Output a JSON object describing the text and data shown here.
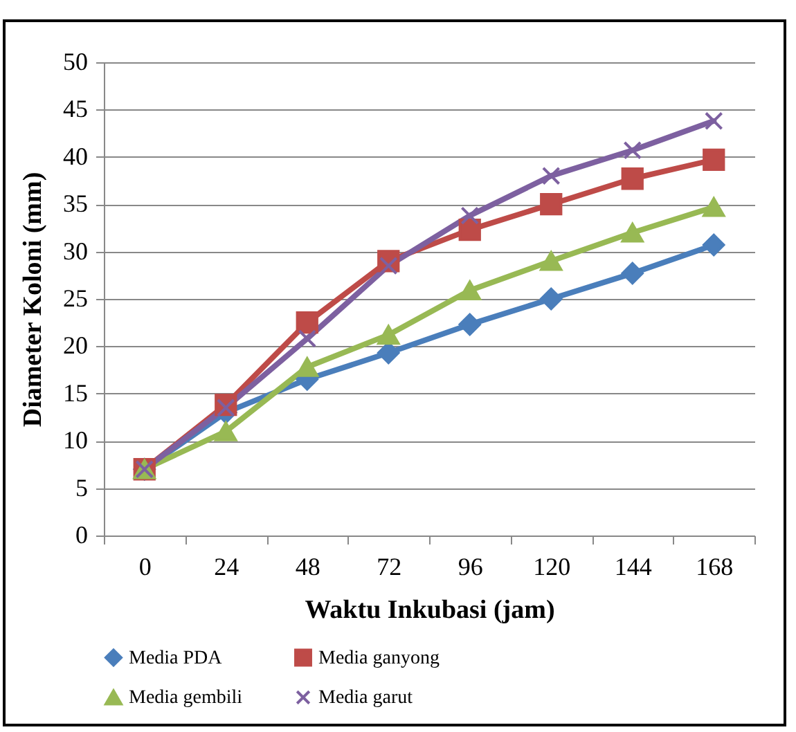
{
  "chart_data": {
    "type": "line",
    "xlabel": "Waktu Inkubasi (jam)",
    "ylabel": "Diameter Koloni (mm)",
    "categories": [
      "0",
      "24",
      "48",
      "72",
      "96",
      "120",
      "144",
      "168"
    ],
    "series": [
      {
        "name": "Media PDA",
        "color": "#4a7ebb",
        "marker": "diamond",
        "values": [
          7,
          13,
          16.5,
          19.3,
          22.3,
          25,
          27.7,
          30.7
        ]
      },
      {
        "name": "Media  ganyong",
        "color": "#be4b48",
        "marker": "square",
        "values": [
          7,
          13.8,
          22.5,
          29,
          32.3,
          35,
          37.7,
          39.7
        ]
      },
      {
        "name": "Media  gembili",
        "color": "#98b954",
        "marker": "triangle",
        "values": [
          7,
          11,
          17.8,
          21.2,
          25.9,
          29,
          32,
          34.7
        ]
      },
      {
        "name": "Media garut",
        "color": "#7d60a0",
        "marker": "cross",
        "values": [
          7,
          13.5,
          20.8,
          28.5,
          33.8,
          38,
          40.7,
          43.8
        ]
      }
    ],
    "ylim": [
      0,
      50
    ],
    "yticks": [
      0,
      5,
      10,
      15,
      20,
      25,
      30,
      35,
      40,
      45,
      50
    ],
    "grid": "y",
    "legend": "bottom"
  }
}
